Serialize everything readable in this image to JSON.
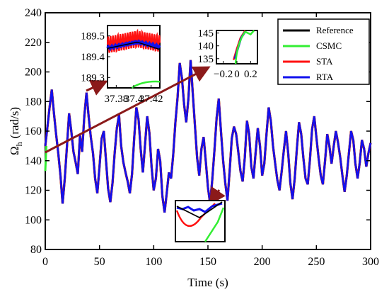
{
  "chart_data": {
    "type": "line",
    "xlabel": "Time (s)",
    "ylabel_main": "Ω",
    "ylabel_sub": "h",
    "ylabel_unit": "(rad/s)",
    "xlim": [
      0,
      300
    ],
    "ylim": [
      80,
      240
    ],
    "xticks": [
      0,
      50,
      100,
      150,
      200,
      250,
      300
    ],
    "yticks": [
      80,
      100,
      120,
      140,
      160,
      180,
      200,
      220,
      240
    ],
    "grid": false,
    "legend_position": "top-right",
    "series": [
      {
        "name": "Reference",
        "color": "#000000"
      },
      {
        "name": "CSMC",
        "color": "#33ee33"
      },
      {
        "name": "STA",
        "color": "#ff1111"
      },
      {
        "name": "RTA",
        "color": "#1111ee"
      }
    ],
    "main_curve": {
      "x": [
        0,
        2,
        4,
        6,
        8,
        10,
        12,
        14,
        16,
        18,
        20,
        22,
        24,
        26,
        28,
        30,
        32,
        34,
        36,
        38,
        40,
        42,
        44,
        46,
        48,
        50,
        52,
        54,
        56,
        58,
        60,
        62,
        64,
        66,
        68,
        70,
        72,
        74,
        76,
        78,
        80,
        82,
        84,
        86,
        88,
        90,
        92,
        94,
        96,
        98,
        100,
        102,
        104,
        106,
        108,
        110,
        112,
        114,
        116,
        118,
        120,
        122,
        124,
        126,
        128,
        130,
        132,
        134,
        136,
        138,
        140,
        142,
        144,
        146,
        148,
        150,
        152,
        154,
        156,
        158,
        160,
        162,
        164,
        166,
        168,
        170,
        172,
        174,
        176,
        178,
        180,
        182,
        184,
        186,
        188,
        190,
        192,
        194,
        196,
        198,
        200,
        202,
        204,
        206,
        208,
        210,
        212,
        214,
        216,
        218,
        220,
        222,
        224,
        226,
        228,
        230,
        232,
        234,
        236,
        238,
        240,
        242,
        244,
        246,
        248,
        250,
        252,
        254,
        256,
        258,
        260,
        262,
        264,
        266,
        268,
        270,
        272,
        274,
        276,
        278,
        280,
        282,
        284,
        286,
        288,
        290,
        292,
        294,
        296,
        298,
        300
      ],
      "y": [
        150,
        163,
        176,
        188,
        172,
        158,
        145,
        130,
        111,
        128,
        150,
        172,
        160,
        146,
        139,
        131,
        157,
        146,
        170,
        186,
        170,
        156,
        145,
        128,
        118,
        136,
        155,
        160,
        140,
        121,
        112,
        125,
        145,
        162,
        171,
        150,
        139,
        132,
        126,
        118,
        131,
        155,
        176,
        168,
        148,
        132,
        151,
        170,
        159,
        136,
        120,
        128,
        148,
        140,
        116,
        105,
        118,
        132,
        128,
        144,
        166,
        183,
        206,
        196,
        178,
        166,
        182,
        208,
        186,
        164,
        142,
        130,
        148,
        156,
        140,
        122,
        111,
        127,
        147,
        169,
        182,
        160,
        140,
        125,
        113,
        133,
        155,
        163,
        158,
        146,
        133,
        126,
        142,
        167,
        158,
        136,
        128,
        146,
        162,
        150,
        130,
        138,
        158,
        176,
        167,
        150,
        138,
        127,
        120,
        133,
        147,
        160,
        145,
        125,
        114,
        128,
        148,
        166,
        158,
        142,
        128,
        124,
        140,
        161,
        170,
        156,
        142,
        130,
        124,
        140,
        158,
        150,
        138,
        150,
        160,
        152,
        142,
        130,
        119,
        130,
        145,
        160,
        154,
        138,
        128,
        139,
        154,
        148,
        136,
        145,
        152
      ]
    },
    "inset_top_left": {
      "xticks": [
        "37.38",
        "37.4",
        "37.42"
      ],
      "yticks": [
        "189.3",
        "189.4",
        "189.5"
      ],
      "xlim": [
        37.37,
        37.43
      ],
      "ylim": [
        189.25,
        189.55
      ]
    },
    "inset_top_right": {
      "xticks": [
        "−0.2",
        "0",
        "0.2"
      ],
      "yticks": [
        "135",
        "140",
        "145"
      ],
      "xlim": [
        -0.3,
        0.3
      ],
      "ylim": [
        133,
        146
      ]
    },
    "inset_bottom": {
      "xticks": [],
      "yticks": []
    }
  }
}
